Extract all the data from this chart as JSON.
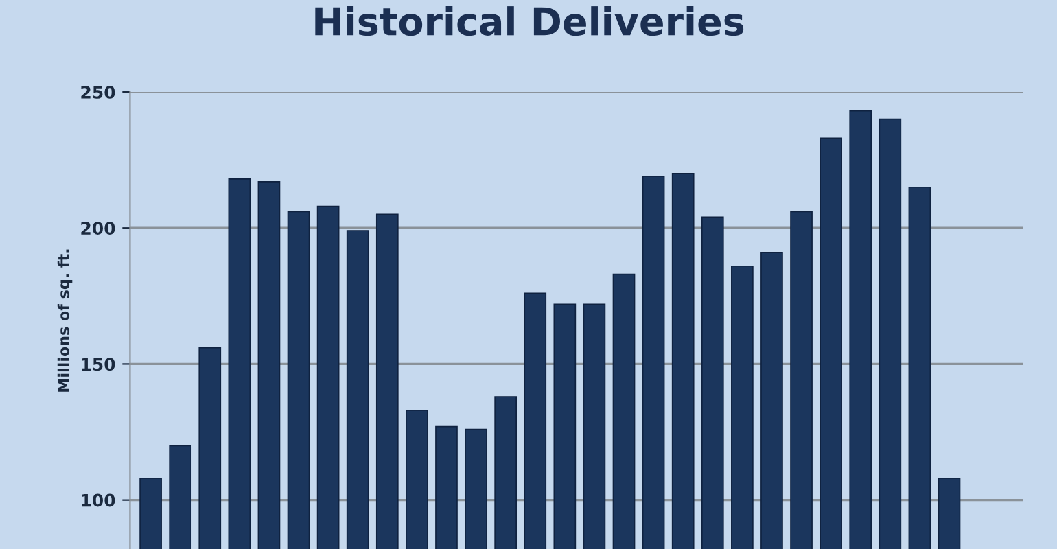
{
  "chart_data": {
    "type": "bar",
    "title": "Historical Deliveries",
    "ylabel": "Millions of sq. ft.",
    "categories": [
      null,
      null,
      null,
      null,
      null,
      null,
      null,
      null,
      null,
      null,
      null,
      null,
      null,
      null,
      null,
      null,
      null,
      null,
      null,
      null,
      null,
      null,
      null,
      null,
      null,
      null,
      null,
      null
    ],
    "values": [
      108,
      120,
      156,
      218,
      217,
      206,
      208,
      199,
      205,
      133,
      127,
      126,
      138,
      176,
      172,
      172,
      183,
      219,
      220,
      204,
      186,
      191,
      206,
      233,
      243,
      240,
      215,
      108
    ],
    "color": "#1b365d",
    "ylim": [
      82,
      250
    ],
    "yticks": [
      100,
      150,
      200,
      250
    ],
    "grid": "y",
    "legend": false
  }
}
